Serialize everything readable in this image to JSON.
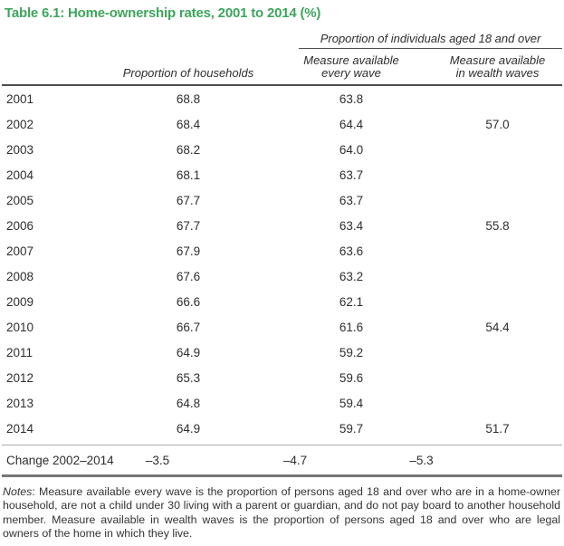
{
  "title": "Table 6.1: Home-ownership rates, 2001 to 2014 (%)",
  "header": {
    "group": "Proportion of individuals aged 18 and over",
    "col_households": "Proportion of households",
    "col_every_wave": [
      "Measure available",
      "every wave"
    ],
    "col_wealth_waves": [
      "Measure available",
      "in wealth waves"
    ]
  },
  "rows": [
    {
      "year": "2001",
      "households": "68.8",
      "every_wave": "63.8",
      "wealth_waves": ""
    },
    {
      "year": "2002",
      "households": "68.4",
      "every_wave": "64.4",
      "wealth_waves": "57.0"
    },
    {
      "year": "2003",
      "households": "68.2",
      "every_wave": "64.0",
      "wealth_waves": ""
    },
    {
      "year": "2004",
      "households": "68.1",
      "every_wave": "63.7",
      "wealth_waves": ""
    },
    {
      "year": "2005",
      "households": "67.7",
      "every_wave": "63.7",
      "wealth_waves": ""
    },
    {
      "year": "2006",
      "households": "67.7",
      "every_wave": "63.4",
      "wealth_waves": "55.8"
    },
    {
      "year": "2007",
      "households": "67.9",
      "every_wave": "63.6",
      "wealth_waves": ""
    },
    {
      "year": "2008",
      "households": "67.6",
      "every_wave": "63.2",
      "wealth_waves": ""
    },
    {
      "year": "2009",
      "households": "66.6",
      "every_wave": "62.1",
      "wealth_waves": ""
    },
    {
      "year": "2010",
      "households": "66.7",
      "every_wave": "61.6",
      "wealth_waves": "54.4"
    },
    {
      "year": "2011",
      "households": "64.9",
      "every_wave": "59.2",
      "wealth_waves": ""
    },
    {
      "year": "2012",
      "households": "65.3",
      "every_wave": "59.6",
      "wealth_waves": ""
    },
    {
      "year": "2013",
      "households": "64.8",
      "every_wave": "59.4",
      "wealth_waves": ""
    },
    {
      "year": "2014",
      "households": "64.9",
      "every_wave": "59.7",
      "wealth_waves": "51.7"
    }
  ],
  "change_row": {
    "label": "Change 2002–2014",
    "households": "–3.5",
    "every_wave": "–4.7",
    "wealth_waves": "–5.3"
  },
  "notes": {
    "label": "Notes",
    "text": ": Measure available every wave is the proportion of persons aged 18 and over who are in a home-owner household, are not a child under 30 living with a parent or guardian, and do not pay board to another household member. Measure available in wealth waves is the proportion of persons aged 18 and over who are legal owners of the home in which they live."
  },
  "colors": {
    "title_green": "#3ea55c",
    "rule_dark": "#4d4d4d",
    "rule_light": "#ababab",
    "rule_bottom": "#767676",
    "body_text": "#2e2e2e"
  },
  "chart_data": {
    "type": "table",
    "title": "Table 6.1: Home-ownership rates, 2001 to 2014 (%)",
    "column_group": {
      "label": "Proportion of individuals aged 18 and over",
      "spans_columns": [
        "Measure available every wave",
        "Measure available in wealth waves"
      ]
    },
    "columns": [
      "",
      "Proportion of households",
      "Measure available every wave",
      "Measure available in wealth waves"
    ],
    "rows": [
      [
        "2001",
        68.8,
        63.8,
        null
      ],
      [
        "2002",
        68.4,
        64.4,
        57.0
      ],
      [
        "2003",
        68.2,
        64.0,
        null
      ],
      [
        "2004",
        68.1,
        63.7,
        null
      ],
      [
        "2005",
        67.7,
        63.7,
        null
      ],
      [
        "2006",
        67.7,
        63.4,
        55.8
      ],
      [
        "2007",
        67.9,
        63.6,
        null
      ],
      [
        "2008",
        67.6,
        63.2,
        null
      ],
      [
        "2009",
        66.6,
        62.1,
        null
      ],
      [
        "2010",
        66.7,
        61.6,
        54.4
      ],
      [
        "2011",
        64.9,
        59.2,
        null
      ],
      [
        "2012",
        65.3,
        59.6,
        null
      ],
      [
        "2013",
        64.8,
        59.4,
        null
      ],
      [
        "2014",
        64.9,
        59.7,
        51.7
      ]
    ],
    "change_row": [
      "Change 2002–2014",
      -3.5,
      -4.7,
      -5.3
    ]
  }
}
